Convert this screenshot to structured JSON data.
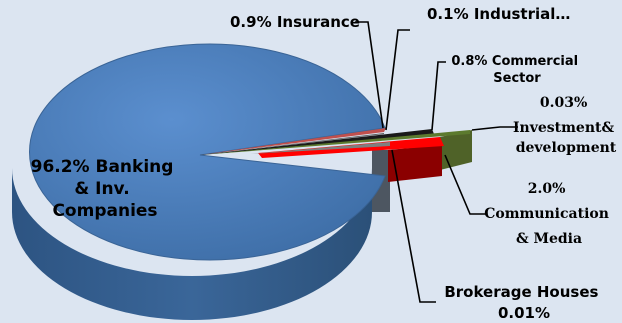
{
  "chart_data": {
    "type": "pie",
    "style": "3d-exploded",
    "slices": [
      {
        "label": "96.2% Banking & Inv. Companies",
        "lines": [
          "96.2% Banking",
          "& Inv.",
          "Companies"
        ],
        "value": 96.2,
        "color": "#4f81bd"
      },
      {
        "label": "0.9% Insurance",
        "lines": [
          "0.9% Insurance"
        ],
        "value": 0.9,
        "color": "#c0504d"
      },
      {
        "label": "0.1% Industrial…",
        "lines": [
          "0.1% Industrial…"
        ],
        "value": 0.1,
        "color": "#5c5c5c"
      },
      {
        "label": "0.8% Commercial Sector",
        "lines": [
          "0.8% Commercial",
          "Sector"
        ],
        "value": 0.8,
        "color": "#1a1a1a"
      },
      {
        "label": "0.03% Investment& development",
        "lines": [
          "0.03%",
          "Investment&",
          "development"
        ],
        "value": 0.03,
        "color": "#4f6228"
      },
      {
        "label": "2.0% Communication & Media",
        "lines": [
          "2.0%",
          "Communication",
          "& Media"
        ],
        "value": 2.0,
        "color": "#ff0000"
      },
      {
        "label": "Brokerage Houses 0.01%",
        "lines": [
          "Brokerage Houses",
          "0.01%"
        ],
        "value": 0.01,
        "color": "#7f7f7f"
      }
    ]
  }
}
